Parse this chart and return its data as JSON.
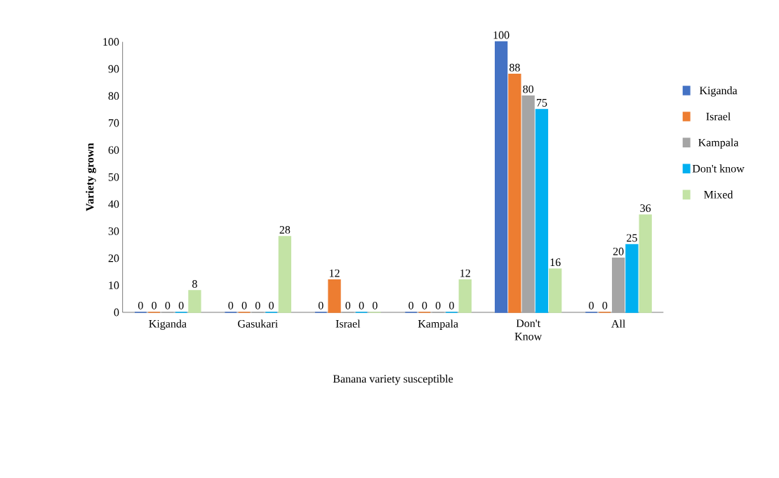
{
  "chart_data": {
    "type": "bar",
    "xlabel": "Banana variety susceptible",
    "ylabel": "Variety grown",
    "categories": [
      "Kiganda",
      "Gasukari",
      "Israel",
      "Kampala",
      "Don't Know",
      "All"
    ],
    "series": [
      {
        "name": "Kiganda",
        "color": "#4472c4",
        "values": [
          0,
          0,
          0,
          0,
          100,
          0
        ]
      },
      {
        "name": "Israel",
        "color": "#ed7d31",
        "values": [
          0,
          0,
          12,
          0,
          88,
          0
        ]
      },
      {
        "name": "Kampala",
        "color": "#a5a5a5",
        "values": [
          0,
          0,
          0,
          0,
          80,
          20
        ]
      },
      {
        "name": "Don't know",
        "color": "#00b0f0",
        "values": [
          0,
          0,
          0,
          0,
          75,
          25
        ]
      },
      {
        "name": "Mixed",
        "color": "#c3e3a5",
        "values": [
          8,
          28,
          0,
          12,
          16,
          36
        ]
      }
    ],
    "ylim": [
      0,
      100
    ],
    "yticks": [
      0,
      10,
      20,
      30,
      40,
      50,
      60,
      70,
      80,
      90,
      100
    ],
    "legend": "right",
    "data_labels": true
  }
}
